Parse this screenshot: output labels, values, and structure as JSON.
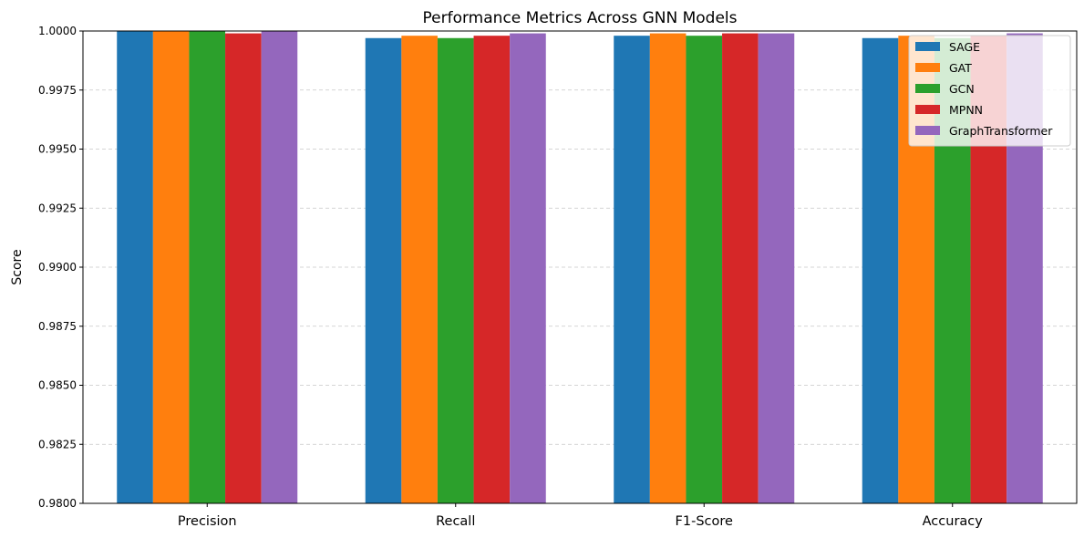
{
  "chart_data": {
    "type": "bar",
    "title": "Performance Metrics Across GNN Models",
    "xlabel": "",
    "ylabel": "Score",
    "categories": [
      "Precision",
      "Recall",
      "F1-Score",
      "Accuracy"
    ],
    "series": [
      {
        "name": "SAGE",
        "color": "#1f77b4",
        "values": [
          1.0,
          0.9997,
          0.9998,
          0.9997
        ]
      },
      {
        "name": "GAT",
        "color": "#ff7f0e",
        "values": [
          1.0,
          0.9998,
          0.9999,
          0.9998
        ]
      },
      {
        "name": "GCN",
        "color": "#2ca02c",
        "values": [
          1.0,
          0.9997,
          0.9998,
          0.9997
        ]
      },
      {
        "name": "MPNN",
        "color": "#d62728",
        "values": [
          0.9999,
          0.9998,
          0.9999,
          0.9998
        ]
      },
      {
        "name": "GraphTransformer",
        "color": "#9467bd",
        "values": [
          1.0,
          0.9999,
          0.9999,
          0.9999
        ]
      }
    ],
    "ylim": [
      0.98,
      1.0
    ],
    "yticks": [
      "0.9800",
      "0.9825",
      "0.9850",
      "0.9875",
      "0.9900",
      "0.9925",
      "0.9950",
      "0.9975",
      "1.0000"
    ],
    "grid": "y-dashed",
    "legend_position": "top-right"
  }
}
